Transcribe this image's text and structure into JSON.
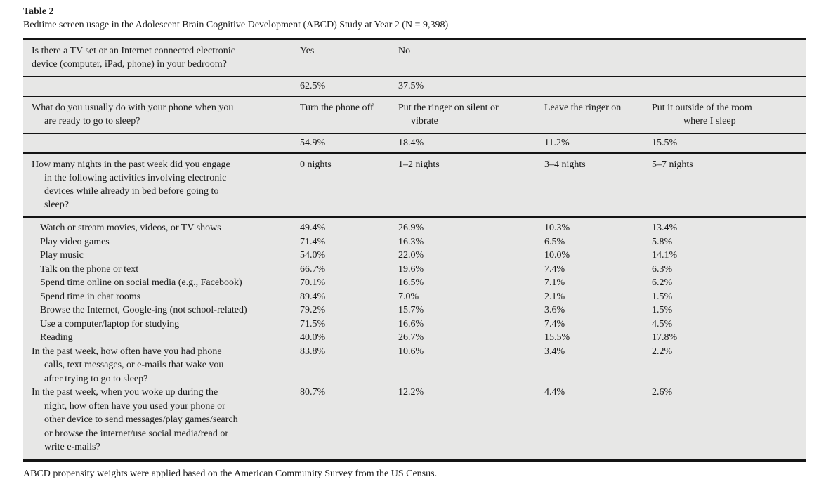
{
  "paper": {
    "table_label": "Table 2",
    "caption": "Bedtime screen usage in the Adolescent Brain Cognitive Development (ABCD) Study at Year 2 (N = 9,398)",
    "footnote": "ABCD propensity weights were applied based on the American Community Survey from the US Census."
  },
  "colors": {
    "page_bg": "#ffffff",
    "table_bg": "#e7e7e6",
    "rule": "#141414",
    "text": "#1b1b1b"
  },
  "table": {
    "sections": [
      {
        "question": "Is there a TV set or an Internet connected electronic\ndevice (computer, iPad, phone) in your bedroom?",
        "options": [
          "Yes",
          "No"
        ],
        "values": [
          "62.5%",
          "37.5%"
        ]
      },
      {
        "question": "What do you usually do with your phone when you\nare ready to go to sleep?",
        "options": [
          "Turn the phone off",
          "Put the ringer on silent or\nvibrate",
          "Leave the ringer on",
          "Put it outside of the room\nwhere I sleep"
        ],
        "values": [
          "54.9%",
          "18.4%",
          "11.2%",
          "15.5%"
        ]
      },
      {
        "question": "How many nights in the past week did you engage\nin the following activities involving electronic\ndevices while already in bed before going to\nsleep?",
        "options": [
          "0 nights",
          "1–2 nights",
          "3–4 nights",
          "5–7 nights"
        ],
        "rows": [
          {
            "label": "Watch or stream movies, videos, or TV shows",
            "values": [
              "49.4%",
              "26.9%",
              "10.3%",
              "13.4%"
            ]
          },
          {
            "label": "Play video games",
            "values": [
              "71.4%",
              "16.3%",
              "6.5%",
              "5.8%"
            ]
          },
          {
            "label": "Play music",
            "values": [
              "54.0%",
              "22.0%",
              "10.0%",
              "14.1%"
            ]
          },
          {
            "label": "Talk on the phone or text",
            "values": [
              "66.7%",
              "19.6%",
              "7.4%",
              "6.3%"
            ]
          },
          {
            "label": "Spend time online on social media (e.g., Facebook)",
            "values": [
              "70.1%",
              "16.5%",
              "7.1%",
              "6.2%"
            ]
          },
          {
            "label": "Spend time in chat rooms",
            "values": [
              "89.4%",
              "7.0%",
              "2.1%",
              "1.5%"
            ]
          },
          {
            "label": "Browse the Internet, Google-ing (not school-related)",
            "values": [
              "79.2%",
              "15.7%",
              "3.6%",
              "1.5%"
            ]
          },
          {
            "label": "Use a computer/laptop for studying",
            "values": [
              "71.5%",
              "16.6%",
              "7.4%",
              "4.5%"
            ]
          },
          {
            "label": "Reading",
            "values": [
              "40.0%",
              "26.7%",
              "15.5%",
              "17.8%"
            ]
          },
          {
            "label": "In the past week, how often have you had phone\ncalls, text messages, or e-mails that wake you\nafter trying to go to sleep?",
            "values": [
              "83.8%",
              "10.6%",
              "3.4%",
              "2.2%"
            ]
          },
          {
            "label": "In the past week, when you woke up during the\nnight, how often have you used your phone or\nother device to send messages/play games/search\nor browse the internet/use social media/read or\nwrite e-mails?",
            "values": [
              "80.7%",
              "12.2%",
              "4.4%",
              "2.6%"
            ]
          }
        ]
      }
    ]
  }
}
